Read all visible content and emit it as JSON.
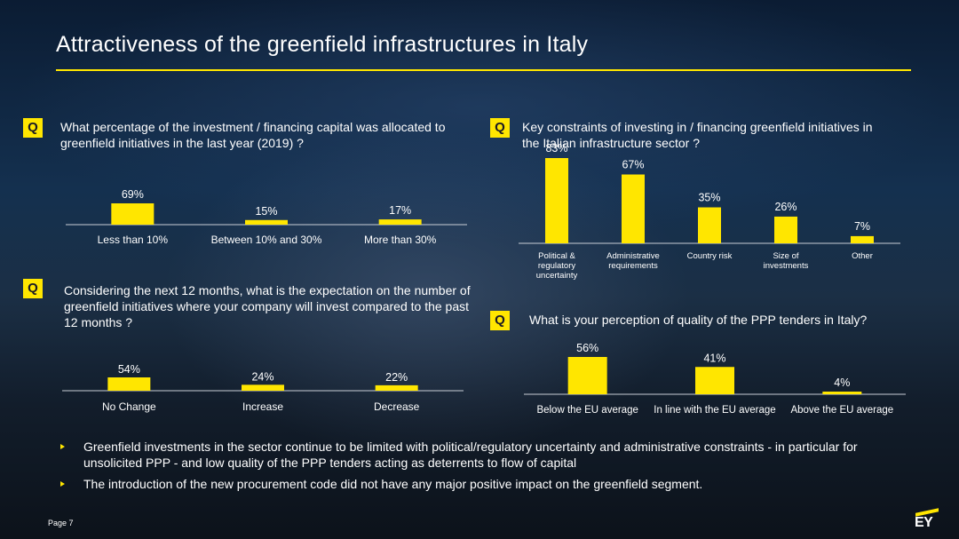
{
  "title": "Attractiveness of the greenfield infrastructures in Italy",
  "badge_label": "Q",
  "questions": {
    "q1": "What percentage of the investment / financing capital was allocated to greenfield initiatives in the last year (2019) ?",
    "q2": "Key constraints of investing in / financing greenfield initiatives in the Italian infrastructure sector ?",
    "q3": "Considering the next 12 months, what is the expectation on the number of greenfield initiatives where your company will invest compared to the past 12 months ?",
    "q4": "What is your perception of quality of the PPP tenders in Italy?"
  },
  "chart_data": [
    {
      "type": "bar",
      "categories": [
        "Less than 10%",
        "Between 10% and 30%",
        "More than 30%"
      ],
      "values": [
        69,
        15,
        17
      ],
      "data_labels": [
        "69%",
        "15%",
        "17%"
      ],
      "ylim": [
        0,
        100
      ],
      "color": "#ffe600"
    },
    {
      "type": "bar",
      "categories": [
        "Political & regulatory uncertainty",
        "Administrative requirements",
        "Country risk",
        "Size of investments",
        "Other"
      ],
      "category_lines": [
        [
          "Political &",
          "regulatory",
          "uncertainty"
        ],
        [
          "Administrative",
          "requirements"
        ],
        [
          "Country risk"
        ],
        [
          "Size of",
          "investments"
        ],
        [
          "Other"
        ]
      ],
      "values": [
        83,
        67,
        35,
        26,
        7
      ],
      "data_labels": [
        "83%",
        "67%",
        "35%",
        "26%",
        "7%"
      ],
      "ylim": [
        0,
        100
      ],
      "color": "#ffe600"
    },
    {
      "type": "bar",
      "categories": [
        "No Change",
        "Increase",
        "Decrease"
      ],
      "values": [
        54,
        24,
        22
      ],
      "data_labels": [
        "54%",
        "24%",
        "22%"
      ],
      "ylim": [
        0,
        100
      ],
      "color": "#ffe600"
    },
    {
      "type": "bar",
      "categories": [
        "Below the EU average",
        "In line with the EU average",
        "Above the EU average"
      ],
      "values": [
        56,
        41,
        4
      ],
      "data_labels": [
        "56%",
        "41%",
        "4%"
      ],
      "ylim": [
        0,
        100
      ],
      "color": "#ffe600"
    }
  ],
  "bullets": [
    "Greenfield investments in the sector continue to be limited with political/regulatory uncertainty and administrative constraints - in particular for unsolicited PPP - and low quality of the PPP tenders acting as deterrents to flow of capital",
    "The introduction of the new procurement code did not have any major positive impact on the greenfield segment."
  ],
  "footer": {
    "page": "Page 7",
    "logo": "EY"
  },
  "colors": {
    "accent": "#ffe600",
    "text": "#ffffff"
  }
}
